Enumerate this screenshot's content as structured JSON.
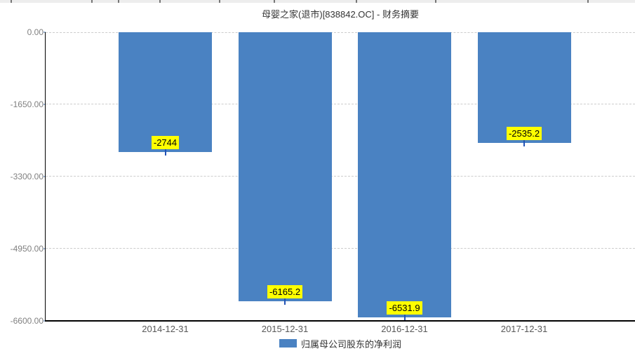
{
  "chart_data": {
    "type": "bar",
    "title": "母婴之家(退市)[838842.OC] - 财务摘要",
    "categories": [
      "2014-12-31",
      "2015-12-31",
      "2016-12-31",
      "2017-12-31"
    ],
    "series": [
      {
        "name": "归属母公司股东的净利润",
        "values": [
          -2744,
          -6165.2,
          -6531.9,
          -2535.2
        ],
        "labels": [
          "-2744",
          "-6165.2",
          "-6531.9",
          "-2535.2"
        ]
      }
    ],
    "ylim": [
      -6600,
      0
    ],
    "yticks": [
      0,
      -1650,
      -3300,
      -4950,
      -6600
    ],
    "ytick_labels": [
      "0.00",
      "-1650.00",
      "-3300.00",
      "-4950.00",
      "-6600.00"
    ],
    "grid": "horizontal-dashed",
    "legend_position": "bottom-center",
    "colors": {
      "bar": "#4a82c2",
      "data_label_bg": "#ffff00",
      "data_label_text": "#000000",
      "connector": "#2353b5",
      "gridline": "#cccccc",
      "axis": "#000000",
      "ytick_text": "#808080",
      "xtick_text": "#595959",
      "title_text": "#333333",
      "legend_text": "#333333"
    }
  }
}
